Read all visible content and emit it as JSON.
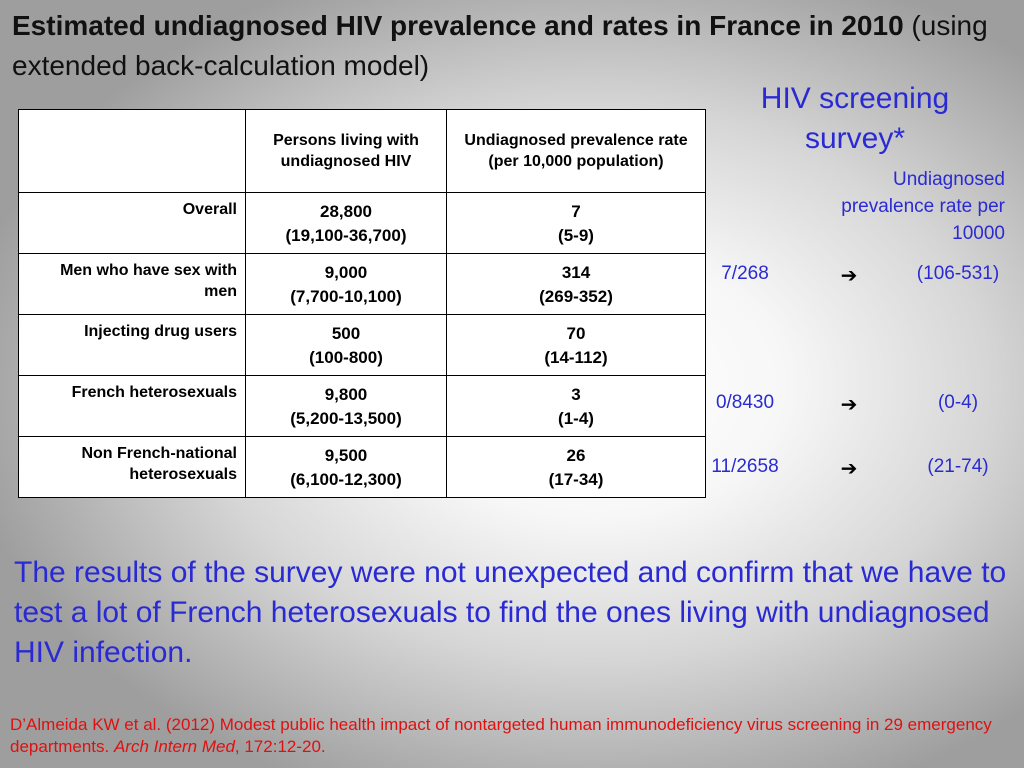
{
  "title": {
    "bold": "Estimated undiagnosed HIV prevalence and rates in France in 2010",
    "normal": " (using extended back-calculation model)"
  },
  "table": {
    "headers": [
      "",
      "Persons living with undiagnosed HIV",
      "Undiagnosed prevalence rate (per 10,000 population)"
    ],
    "rows": [
      {
        "group": "Overall",
        "persons": "28,800",
        "persons_ci": "(19,100-36,700)",
        "rate": "7",
        "rate_ci": "(5-9)"
      },
      {
        "group": "Men who have sex with men",
        "persons": "9,000",
        "persons_ci": "(7,700-10,100)",
        "rate": "314",
        "rate_ci": "(269-352)"
      },
      {
        "group": "Injecting drug users",
        "persons": "500",
        "persons_ci": "(100-800)",
        "rate": "70",
        "rate_ci": "(14-112)"
      },
      {
        "group": "French heterosexuals",
        "persons": "9,800",
        "persons_ci": "(5,200-13,500)",
        "rate": "3",
        "rate_ci": "(1-4)"
      },
      {
        "group": "Non French-national heterosexuals",
        "persons": "9,500",
        "persons_ci": "(6,100-12,300)",
        "rate": "26",
        "rate_ci": "(17-34)"
      }
    ]
  },
  "survey": {
    "title": "HIV screening survey*",
    "subtitle": "Undiagnosed prevalence rate per 10000",
    "arrow_icon": "right-arrow-icon",
    "rows": [
      {
        "count": "7/268",
        "arrow": "➔",
        "range": "(106-531)"
      },
      {
        "count": "0/8430",
        "arrow": "➔",
        "range": "(0-4)"
      },
      {
        "count": "11/2658",
        "arrow": "➔",
        "range": "(21-74)"
      }
    ]
  },
  "conclusion": "The results of the survey were not unexpected and confirm that we have to test a lot of French heterosexuals to find the ones living with undiagnosed HIV infection.",
  "reference": {
    "text": "D’Almeida KW et al. (2012) Modest public health impact of nontargeted human immunodeficiency virus screening in 29 emergency departments. ",
    "journal": "Arch Intern Med",
    "citation": ", 172:12-20."
  },
  "colors": {
    "accent_blue": "#2a2ad4",
    "reference_red": "#e01010"
  }
}
